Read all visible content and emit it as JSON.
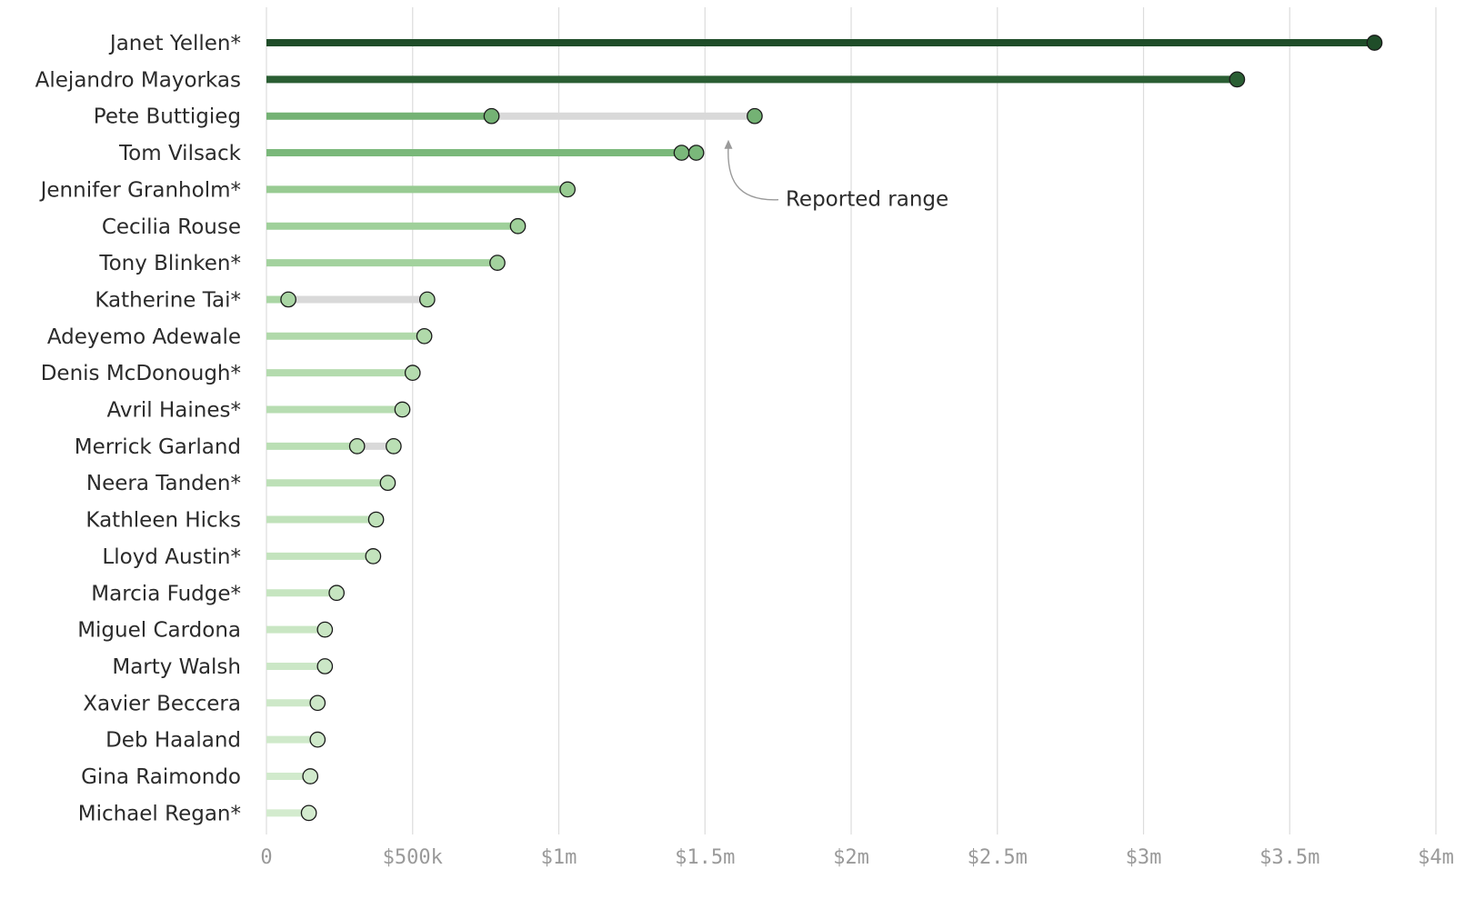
{
  "chart_data": {
    "type": "dot-range",
    "title": "",
    "xlabel": "",
    "ylabel": "",
    "xlim": [
      0,
      4000000
    ],
    "grid": true,
    "x_ticks": [
      {
        "value": 0,
        "label": "0"
      },
      {
        "value": 500000,
        "label": "$500k"
      },
      {
        "value": 1000000,
        "label": "$1m"
      },
      {
        "value": 1500000,
        "label": "$1.5m"
      },
      {
        "value": 2000000,
        "label": "$2m"
      },
      {
        "value": 2500000,
        "label": "$2.5m"
      },
      {
        "value": 3000000,
        "label": "$3m"
      },
      {
        "value": 3500000,
        "label": "$3.5m"
      },
      {
        "value": 4000000,
        "label": "$4m"
      }
    ],
    "rows": [
      {
        "name": "Janet Yellen*",
        "min": 3790000,
        "max": 3790000,
        "color": "#1f4d29"
      },
      {
        "name": "Alejandro Mayorkas",
        "min": 3320000,
        "max": 3320000,
        "color": "#2a5e33"
      },
      {
        "name": "Pete Buttigieg",
        "min": 770000,
        "max": 1670000,
        "color": "#74b274"
      },
      {
        "name": "Tom Vilsack",
        "min": 1420000,
        "max": 1470000,
        "color": "#7ab87a"
      },
      {
        "name": "Jennifer Granholm*",
        "min": 1030000,
        "max": 1030000,
        "color": "#98cb92"
      },
      {
        "name": "Cecilia Rouse",
        "min": 860000,
        "max": 860000,
        "color": "#9fd09a"
      },
      {
        "name": "Tony Blinken*",
        "min": 790000,
        "max": 790000,
        "color": "#a3d29e"
      },
      {
        "name": "Katherine Tai*",
        "min": 75000,
        "max": 550000,
        "color": "#aad6a4"
      },
      {
        "name": "Adeyemo Adewale",
        "min": 540000,
        "max": 540000,
        "color": "#b0d9aa"
      },
      {
        "name": "Denis McDonough*",
        "min": 500000,
        "max": 500000,
        "color": "#b4dbae"
      },
      {
        "name": "Avril Haines*",
        "min": 465000,
        "max": 465000,
        "color": "#b7ddb1"
      },
      {
        "name": "Merrick Garland",
        "min": 310000,
        "max": 435000,
        "color": "#badfb4"
      },
      {
        "name": "Neera Tanden*",
        "min": 415000,
        "max": 415000,
        "color": "#bde0b7"
      },
      {
        "name": "Kathleen Hicks",
        "min": 375000,
        "max": 375000,
        "color": "#c0e2ba"
      },
      {
        "name": "Lloyd Austin*",
        "min": 365000,
        "max": 365000,
        "color": "#c3e3bd"
      },
      {
        "name": "Marcia Fudge*",
        "min": 240000,
        "max": 240000,
        "color": "#c6e5c0"
      },
      {
        "name": "Miguel Cardona",
        "min": 200000,
        "max": 200000,
        "color": "#c9e6c3"
      },
      {
        "name": "Marty Walsh",
        "min": 200000,
        "max": 200000,
        "color": "#cbe7c6"
      },
      {
        "name": "Xavier Beccera",
        "min": 175000,
        "max": 175000,
        "color": "#cde8c8"
      },
      {
        "name": "Deb Haaland",
        "min": 175000,
        "max": 175000,
        "color": "#cfe9ca"
      },
      {
        "name": "Gina Raimondo",
        "min": 150000,
        "max": 150000,
        "color": "#d1eacc"
      },
      {
        "name": "Michael Regan*",
        "min": 145000,
        "max": 145000,
        "color": "#d3ebce"
      }
    ],
    "range_color": "#d9d9d9",
    "annotation": {
      "text": "Reported range",
      "row": "Pete Buttigieg",
      "arrow_target_value": 1580000
    }
  }
}
